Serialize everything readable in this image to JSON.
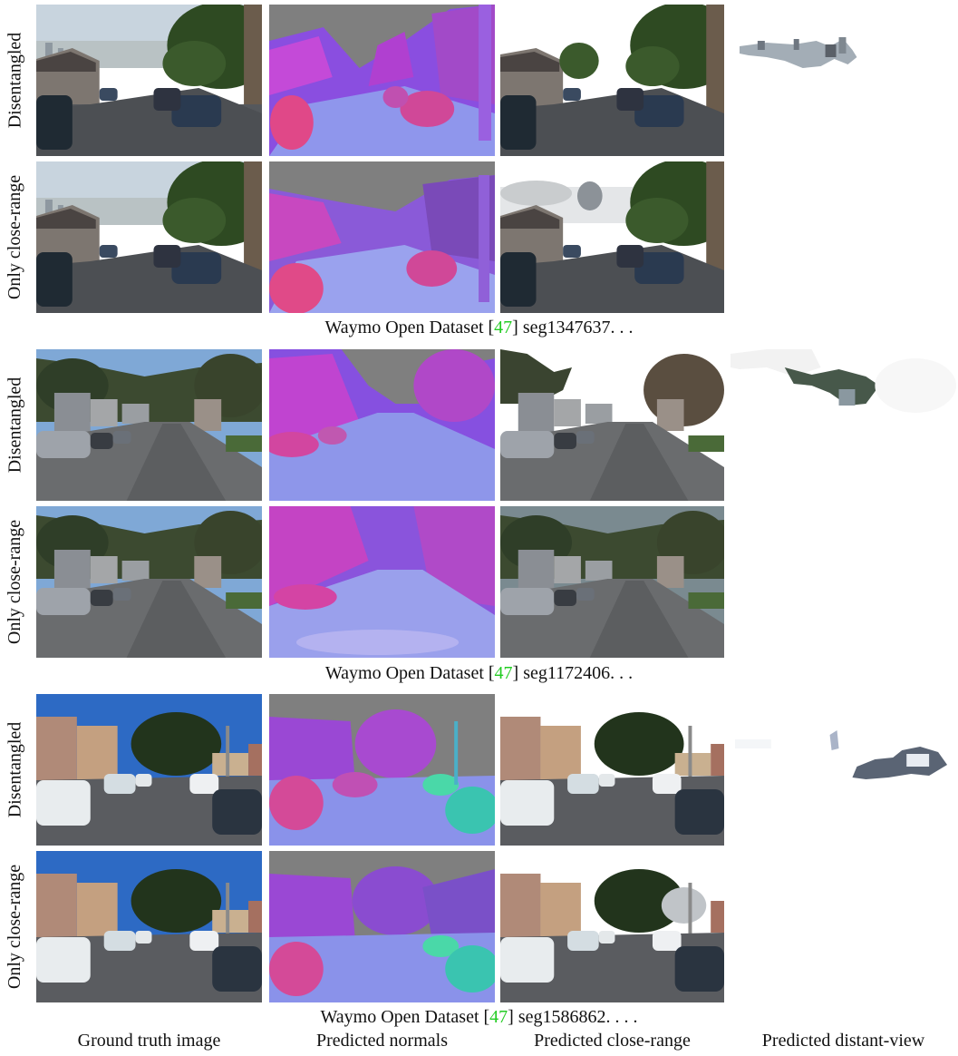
{
  "groups": [
    {
      "row_labels": [
        "Disentangled",
        "Only close-range"
      ],
      "caption": {
        "prefix": "Waymo Open Dataset [",
        "cite": "47",
        "suffix": "] seg1347637. . ."
      }
    },
    {
      "row_labels": [
        "Disentangled",
        "Only close-range"
      ],
      "caption": {
        "prefix": "Waymo Open Dataset [",
        "cite": "47",
        "suffix": "] seg1172406. . ."
      }
    },
    {
      "row_labels": [
        "Disentangled",
        "Only close-range"
      ],
      "caption": {
        "prefix": "Waymo Open Dataset [",
        "cite": "47",
        "suffix": "] seg1586862. . . ."
      }
    }
  ],
  "column_labels": [
    "Ground truth image",
    "Predicted normals",
    "Predicted close-range",
    "Predicted distant-view"
  ],
  "colors": {
    "cite": "#22cc22",
    "normals_purple": "#7d6ee8",
    "normals_magenta": "#e040c8",
    "normals_bg": "#7f7f7f"
  }
}
